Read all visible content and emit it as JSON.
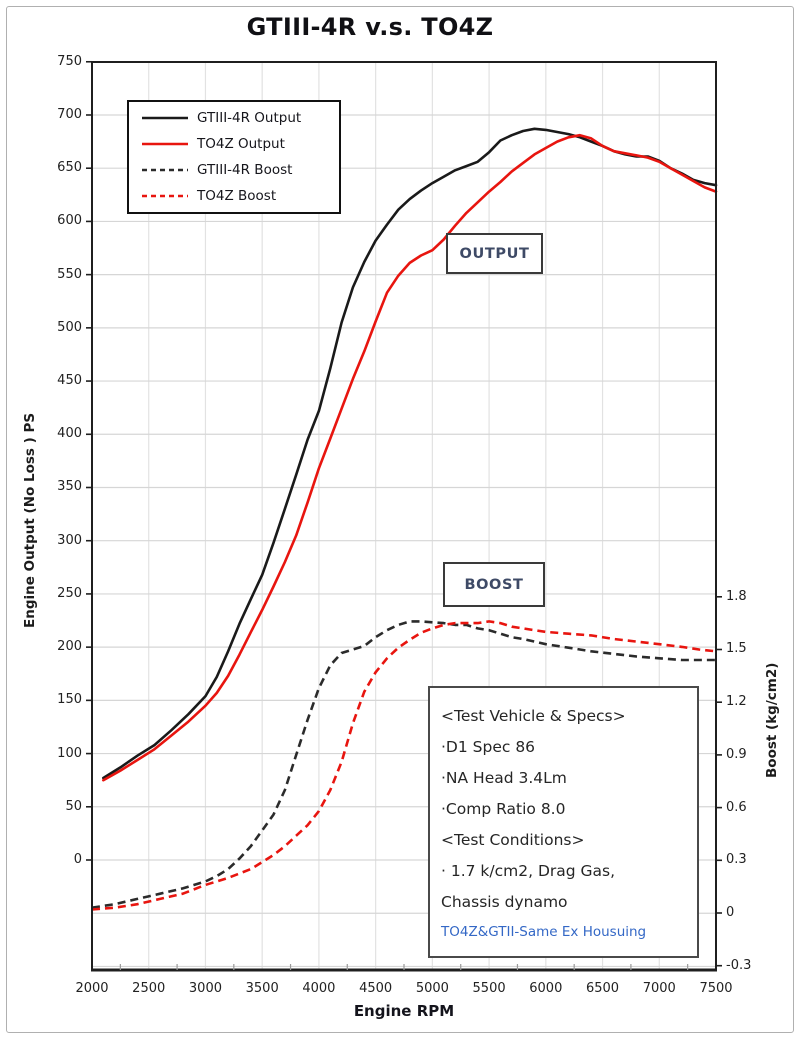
{
  "title": "GTIII-4R v.s. TO4Z",
  "axes": {
    "x": {
      "label": "Engine RPM",
      "min": 2000,
      "max": 7500,
      "ticks": [
        2000,
        2500,
        3000,
        3500,
        4000,
        4500,
        5000,
        5500,
        6000,
        6500,
        7000,
        7500
      ],
      "minor_tick_step": 250
    },
    "y_left": {
      "label": "Engine Output (No Loss ) PS",
      "tick_values": [
        0,
        50,
        100,
        150,
        200,
        250,
        300,
        350,
        400,
        450,
        500,
        550,
        600,
        650,
        700,
        750
      ],
      "grid_min": -100,
      "grid_max": 700,
      "grid_step": 50
    },
    "y_right": {
      "label": "Boost (kg/cm2)",
      "tick_labels": [
        "1.8",
        "1.5",
        "1.2",
        "0.9",
        "0.6",
        "0.3",
        "0",
        "-0.3"
      ],
      "tick_values": [
        1.8,
        1.5,
        1.2,
        0.9,
        0.6,
        0.3,
        0,
        -0.3
      ]
    }
  },
  "annotations": {
    "output_box": "OUTPUT",
    "boost_box": "BOOST"
  },
  "spec_box": {
    "lines": [
      {
        "text": "<Test Vehicle & Specs>",
        "color": "#262626",
        "small": false
      },
      {
        "text": "·D1 Spec 86",
        "color": "#262626",
        "small": false
      },
      {
        "text": "·NA Head 3.4Lm",
        "color": "#262626",
        "small": false
      },
      {
        "text": "·Comp Ratio 8.0",
        "color": "#262626",
        "small": false
      },
      {
        "text": "<Test Conditions>",
        "color": "#262626",
        "small": false
      },
      {
        "text": "· 1.7 k/cm2, Drag Gas,",
        "color": "#262626",
        "small": false
      },
      {
        "text": "Chassis dynamo",
        "color": "#262626",
        "small": false
      },
      {
        "text": "TO4Z&GTII-Same Ex Housuing",
        "color": "#3468c6",
        "small": true
      }
    ]
  },
  "colors": {
    "black_series": "#1a1a1a",
    "red_series": "#e8150f",
    "grid_horizontal": "#d6d6d6",
    "grid_vertical": "#e2e2e2",
    "axis": "#1f1f1f",
    "tick_text": "#222222"
  },
  "chart_data": {
    "type": "line",
    "title": "GTIII-4R v.s. TO4Z",
    "xlabel": "Engine RPM",
    "ylabel_left": "Engine Output (No Loss ) PS",
    "ylabel_right": "Boost (kg/cm2)",
    "x_range": [
      2000,
      7500
    ],
    "y_left_range": [
      -105,
      750
    ],
    "y_right_range": [
      -0.3,
      1.8
    ],
    "grid": true,
    "legend_position": "top-left",
    "series": [
      {
        "name": "GTIII-4R Output",
        "axis": "left",
        "color": "#1a1a1a",
        "style": "solid",
        "points": [
          [
            2100,
            77
          ],
          [
            2250,
            87
          ],
          [
            2400,
            98
          ],
          [
            2550,
            108
          ],
          [
            2700,
            122
          ],
          [
            2850,
            137
          ],
          [
            3000,
            154
          ],
          [
            3100,
            172
          ],
          [
            3200,
            196
          ],
          [
            3300,
            222
          ],
          [
            3400,
            245
          ],
          [
            3500,
            268
          ],
          [
            3600,
            298
          ],
          [
            3700,
            330
          ],
          [
            3800,
            362
          ],
          [
            3900,
            395
          ],
          [
            4000,
            422
          ],
          [
            4100,
            462
          ],
          [
            4200,
            505
          ],
          [
            4300,
            538
          ],
          [
            4400,
            562
          ],
          [
            4500,
            582
          ],
          [
            4600,
            597
          ],
          [
            4700,
            611
          ],
          [
            4800,
            621
          ],
          [
            4900,
            629
          ],
          [
            5000,
            636
          ],
          [
            5100,
            642
          ],
          [
            5200,
            648
          ],
          [
            5300,
            652
          ],
          [
            5400,
            656
          ],
          [
            5500,
            665
          ],
          [
            5600,
            676
          ],
          [
            5700,
            681
          ],
          [
            5800,
            685
          ],
          [
            5900,
            687
          ],
          [
            6000,
            686
          ],
          [
            6100,
            684
          ],
          [
            6200,
            682
          ],
          [
            6300,
            679
          ],
          [
            6400,
            675
          ],
          [
            6500,
            671
          ],
          [
            6600,
            666
          ],
          [
            6700,
            663
          ],
          [
            6800,
            661
          ],
          [
            6900,
            661
          ],
          [
            7000,
            657
          ],
          [
            7100,
            650
          ],
          [
            7200,
            645
          ],
          [
            7300,
            639
          ],
          [
            7400,
            636
          ],
          [
            7500,
            634
          ]
        ]
      },
      {
        "name": "TO4Z Output",
        "axis": "left",
        "color": "#e8150f",
        "style": "solid",
        "points": [
          [
            2100,
            75
          ],
          [
            2250,
            84
          ],
          [
            2400,
            94
          ],
          [
            2550,
            104
          ],
          [
            2700,
            117
          ],
          [
            2850,
            130
          ],
          [
            3000,
            145
          ],
          [
            3100,
            157
          ],
          [
            3200,
            173
          ],
          [
            3300,
            193
          ],
          [
            3400,
            214
          ],
          [
            3500,
            235
          ],
          [
            3600,
            257
          ],
          [
            3700,
            280
          ],
          [
            3800,
            305
          ],
          [
            3900,
            336
          ],
          [
            4000,
            368
          ],
          [
            4100,
            396
          ],
          [
            4200,
            424
          ],
          [
            4300,
            452
          ],
          [
            4400,
            478
          ],
          [
            4500,
            506
          ],
          [
            4600,
            533
          ],
          [
            4700,
            549
          ],
          [
            4800,
            561
          ],
          [
            4900,
            568
          ],
          [
            5000,
            573
          ],
          [
            5100,
            583
          ],
          [
            5200,
            596
          ],
          [
            5300,
            608
          ],
          [
            5400,
            618
          ],
          [
            5500,
            628
          ],
          [
            5600,
            637
          ],
          [
            5700,
            647
          ],
          [
            5800,
            655
          ],
          [
            5900,
            663
          ],
          [
            6000,
            669
          ],
          [
            6100,
            675
          ],
          [
            6200,
            679
          ],
          [
            6300,
            681
          ],
          [
            6400,
            678
          ],
          [
            6500,
            671
          ],
          [
            6600,
            666
          ],
          [
            6700,
            664
          ],
          [
            6800,
            662
          ],
          [
            6900,
            660
          ],
          [
            7000,
            656
          ],
          [
            7100,
            650
          ],
          [
            7200,
            644
          ],
          [
            7300,
            638
          ],
          [
            7400,
            632
          ],
          [
            7500,
            628
          ]
        ]
      },
      {
        "name": "GTIII-4R Boost",
        "axis": "right",
        "color": "#2b2b2b",
        "style": "dashed",
        "points": [
          [
            2000,
            0.03
          ],
          [
            2200,
            0.05
          ],
          [
            2400,
            0.08
          ],
          [
            2600,
            0.11
          ],
          [
            2800,
            0.14
          ],
          [
            3000,
            0.18
          ],
          [
            3100,
            0.21
          ],
          [
            3200,
            0.25
          ],
          [
            3300,
            0.31
          ],
          [
            3400,
            0.38
          ],
          [
            3500,
            0.47
          ],
          [
            3600,
            0.56
          ],
          [
            3700,
            0.7
          ],
          [
            3800,
            0.9
          ],
          [
            3900,
            1.1
          ],
          [
            4000,
            1.28
          ],
          [
            4100,
            1.41
          ],
          [
            4200,
            1.48
          ],
          [
            4300,
            1.5
          ],
          [
            4400,
            1.52
          ],
          [
            4500,
            1.57
          ],
          [
            4600,
            1.61
          ],
          [
            4700,
            1.64
          ],
          [
            4800,
            1.66
          ],
          [
            4900,
            1.66
          ],
          [
            5000,
            1.655
          ],
          [
            5100,
            1.65
          ],
          [
            5200,
            1.64
          ],
          [
            5300,
            1.64
          ],
          [
            5400,
            1.62
          ],
          [
            5500,
            1.61
          ],
          [
            5600,
            1.59
          ],
          [
            5700,
            1.57
          ],
          [
            5800,
            1.56
          ],
          [
            5900,
            1.545
          ],
          [
            6000,
            1.53
          ],
          [
            6200,
            1.51
          ],
          [
            6400,
            1.49
          ],
          [
            6600,
            1.475
          ],
          [
            6800,
            1.46
          ],
          [
            7000,
            1.45
          ],
          [
            7200,
            1.44
          ],
          [
            7350,
            1.44
          ],
          [
            7500,
            1.44
          ]
        ]
      },
      {
        "name": "TO4Z Boost",
        "axis": "right",
        "color": "#e8150f",
        "style": "dashed",
        "points": [
          [
            2000,
            0.02
          ],
          [
            2200,
            0.03
          ],
          [
            2400,
            0.05
          ],
          [
            2600,
            0.08
          ],
          [
            2800,
            0.11
          ],
          [
            3000,
            0.16
          ],
          [
            3200,
            0.2
          ],
          [
            3400,
            0.25
          ],
          [
            3500,
            0.29
          ],
          [
            3600,
            0.33
          ],
          [
            3700,
            0.38
          ],
          [
            3800,
            0.44
          ],
          [
            3900,
            0.5
          ],
          [
            4000,
            0.58
          ],
          [
            4100,
            0.7
          ],
          [
            4200,
            0.86
          ],
          [
            4300,
            1.08
          ],
          [
            4400,
            1.26
          ],
          [
            4500,
            1.37
          ],
          [
            4600,
            1.45
          ],
          [
            4700,
            1.51
          ],
          [
            4800,
            1.555
          ],
          [
            4900,
            1.595
          ],
          [
            5000,
            1.62
          ],
          [
            5100,
            1.64
          ],
          [
            5200,
            1.65
          ],
          [
            5300,
            1.65
          ],
          [
            5400,
            1.65
          ],
          [
            5500,
            1.66
          ],
          [
            5600,
            1.65
          ],
          [
            5700,
            1.63
          ],
          [
            5800,
            1.62
          ],
          [
            5900,
            1.61
          ],
          [
            6000,
            1.6
          ],
          [
            6200,
            1.59
          ],
          [
            6400,
            1.58
          ],
          [
            6600,
            1.56
          ],
          [
            6800,
            1.545
          ],
          [
            7000,
            1.53
          ],
          [
            7200,
            1.515
          ],
          [
            7350,
            1.5
          ],
          [
            7500,
            1.49
          ]
        ]
      }
    ]
  }
}
